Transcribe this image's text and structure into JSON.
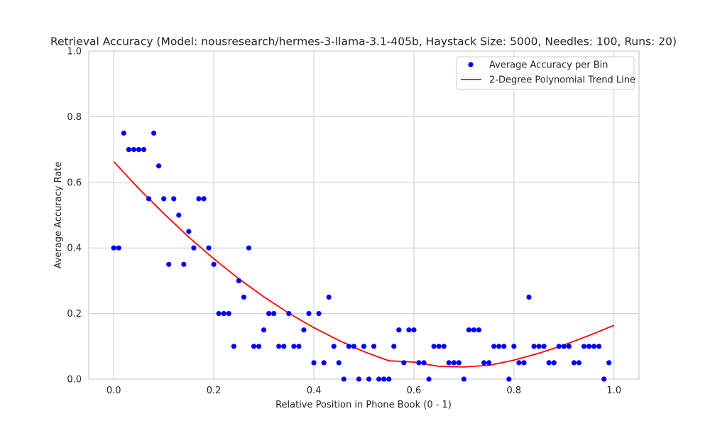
{
  "chart_data": {
    "type": "scatter",
    "title": "Retrieval Accuracy (Model: nousresearch/hermes-3-llama-3.1-405b, Haystack Size: 5000, Needles: 100, Runs: 20)",
    "xlabel": "Relative Position in Phone Book (0 - 1)",
    "ylabel": "Average Accuracy Rate",
    "xlim": [
      -0.05,
      1.05
    ],
    "ylim": [
      0.0,
      1.0
    ],
    "xticks": [
      "0.0",
      "0.2",
      "0.4",
      "0.6",
      "0.8",
      "1.0"
    ],
    "yticks": [
      "0.0",
      "0.2",
      "0.4",
      "0.6",
      "0.8",
      "1.0"
    ],
    "grid": true,
    "legend_position": "top-right",
    "series": [
      {
        "name": "Average Accuracy per Bin",
        "kind": "scatter",
        "color": "#0000ff",
        "x": [
          0.0,
          0.01,
          0.02,
          0.03,
          0.04,
          0.05,
          0.06,
          0.07,
          0.08,
          0.09,
          0.1,
          0.11,
          0.12,
          0.13,
          0.14,
          0.15,
          0.16,
          0.17,
          0.18,
          0.19,
          0.2,
          0.21,
          0.22,
          0.23,
          0.24,
          0.25,
          0.26,
          0.27,
          0.28,
          0.29,
          0.3,
          0.31,
          0.32,
          0.33,
          0.34,
          0.35,
          0.36,
          0.37,
          0.38,
          0.39,
          0.4,
          0.41,
          0.42,
          0.43,
          0.44,
          0.45,
          0.46,
          0.47,
          0.48,
          0.49,
          0.5,
          0.51,
          0.52,
          0.53,
          0.54,
          0.55,
          0.56,
          0.57,
          0.58,
          0.59,
          0.6,
          0.61,
          0.62,
          0.63,
          0.64,
          0.65,
          0.66,
          0.67,
          0.68,
          0.69,
          0.7,
          0.71,
          0.72,
          0.73,
          0.74,
          0.75,
          0.76,
          0.77,
          0.78,
          0.79,
          0.8,
          0.81,
          0.82,
          0.83,
          0.84,
          0.85,
          0.86,
          0.87,
          0.88,
          0.89,
          0.9,
          0.91,
          0.92,
          0.93,
          0.94,
          0.95,
          0.96,
          0.97,
          0.98,
          0.99
        ],
        "y": [
          0.4,
          0.4,
          0.75,
          0.7,
          0.7,
          0.7,
          0.7,
          0.55,
          0.75,
          0.65,
          0.55,
          0.35,
          0.55,
          0.5,
          0.35,
          0.45,
          0.4,
          0.55,
          0.55,
          0.4,
          0.35,
          0.2,
          0.2,
          0.2,
          0.1,
          0.3,
          0.25,
          0.4,
          0.1,
          0.1,
          0.15,
          0.2,
          0.2,
          0.1,
          0.1,
          0.2,
          0.1,
          0.1,
          0.15,
          0.2,
          0.05,
          0.2,
          0.05,
          0.25,
          0.1,
          0.05,
          0.0,
          0.1,
          0.1,
          0.0,
          0.1,
          0.0,
          0.1,
          0.0,
          0.0,
          0.0,
          0.1,
          0.15,
          0.05,
          0.15,
          0.15,
          0.05,
          0.05,
          0.0,
          0.1,
          0.1,
          0.1,
          0.05,
          0.05,
          0.05,
          0.0,
          0.15,
          0.15,
          0.15,
          0.05,
          0.05,
          0.1,
          0.1,
          0.1,
          0.0,
          0.1,
          0.05,
          0.05,
          0.25,
          0.1,
          0.1,
          0.1,
          0.05,
          0.05,
          0.1,
          0.1,
          0.1,
          0.05,
          0.05,
          0.1,
          0.1,
          0.1,
          0.1,
          0.0,
          0.05
        ]
      },
      {
        "name": "2-Degree Polynomial Trend Line",
        "kind": "line",
        "color": "#ff0000",
        "x": [
          0.0,
          0.05,
          0.1,
          0.15,
          0.2,
          0.25,
          0.3,
          0.35,
          0.4,
          0.45,
          0.5,
          0.55,
          0.6,
          0.65,
          0.7,
          0.75,
          0.8,
          0.85,
          0.9,
          0.95,
          1.0
        ],
        "y": [
          0.663,
          0.581,
          0.505,
          0.433,
          0.367,
          0.306,
          0.251,
          0.201,
          0.157,
          0.118,
          0.084,
          0.056,
          0.052,
          0.039,
          0.037,
          0.042,
          0.058,
          0.079,
          0.104,
          0.133,
          0.164
        ]
      }
    ]
  }
}
